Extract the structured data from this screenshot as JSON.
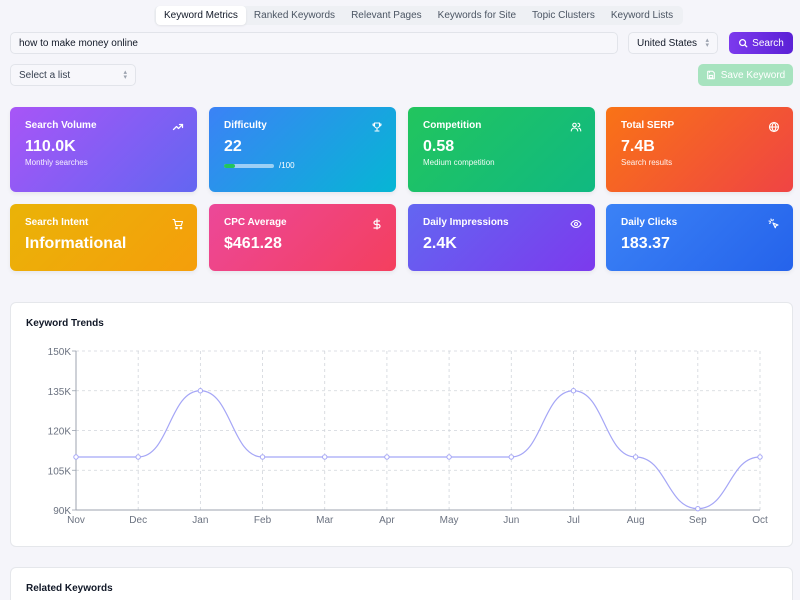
{
  "tabs": [
    "Keyword Metrics",
    "Ranked Keywords",
    "Relevant Pages",
    "Keywords for Site",
    "Topic Clusters",
    "Keyword Lists"
  ],
  "active_tab": "Keyword Metrics",
  "search": {
    "value": "how to make money online",
    "country": "United States",
    "button_label": "Search"
  },
  "list_select": {
    "placeholder": "Select a list"
  },
  "save_button": {
    "label": "Save Keyword"
  },
  "cards": {
    "search_volume": {
      "title": "Search Volume",
      "value": "110.0K",
      "sub": "Monthly searches",
      "icon": "trending-up-icon"
    },
    "difficulty": {
      "title": "Difficulty",
      "value": "22",
      "max": "/100",
      "progress": 0.22,
      "icon": "trophy-icon"
    },
    "competition": {
      "title": "Competition",
      "value": "0.58",
      "sub": "Medium competition",
      "icon": "users-icon"
    },
    "total_serp": {
      "title": "Total SERP",
      "value": "7.4B",
      "sub": "Search results",
      "icon": "globe-icon"
    },
    "search_intent": {
      "title": "Search Intent",
      "value": "Informational",
      "icon": "cart-icon"
    },
    "cpc_average": {
      "title": "CPC Average",
      "value": "$461.28",
      "icon": "dollar-icon"
    },
    "daily_impressions": {
      "title": "Daily Impressions",
      "value": "2.4K",
      "icon": "eye-icon"
    },
    "daily_clicks": {
      "title": "Daily Clicks",
      "value": "183.37",
      "icon": "cursor-click-icon"
    }
  },
  "colors": {
    "accent": "#6d28d9",
    "search_volume": [
      "#a855f7",
      "#6366f1"
    ],
    "difficulty": [
      "#3b82f6",
      "#06b6d4"
    ],
    "competition": [
      "#22c55e",
      "#10b981"
    ],
    "total_serp": [
      "#f97316",
      "#ef4444"
    ],
    "search_intent": [
      "#eab308",
      "#f59e0b"
    ],
    "cpc_average": [
      "#ec4899",
      "#f43f5e"
    ],
    "daily_impressions": [
      "#6366f1",
      "#7c3aed"
    ],
    "daily_clicks": [
      "#3b82f6",
      "#2563eb"
    ],
    "line": "#a5a6f6"
  },
  "trends_panel": {
    "title": "Keyword Trends"
  },
  "related_panel": {
    "title": "Related Keywords"
  },
  "chart_data": {
    "type": "line",
    "title": "Keyword Trends",
    "x": [
      "Nov",
      "Dec",
      "Jan",
      "Feb",
      "Mar",
      "Apr",
      "May",
      "Jun",
      "Jul",
      "Aug",
      "Sep",
      "Oct"
    ],
    "series": [
      {
        "values": [
          110000,
          110000,
          135000,
          110000,
          110000,
          110000,
          110000,
          110000,
          135000,
          110000,
          90500,
          110000
        ]
      }
    ],
    "ylim": [
      90000,
      150000
    ],
    "yticks": [
      90000,
      105000,
      120000,
      135000,
      150000
    ],
    "ytick_labels": [
      "90K",
      "105K",
      "120K",
      "135K",
      "150K"
    ],
    "grid": true,
    "grid_style": "dashed"
  }
}
